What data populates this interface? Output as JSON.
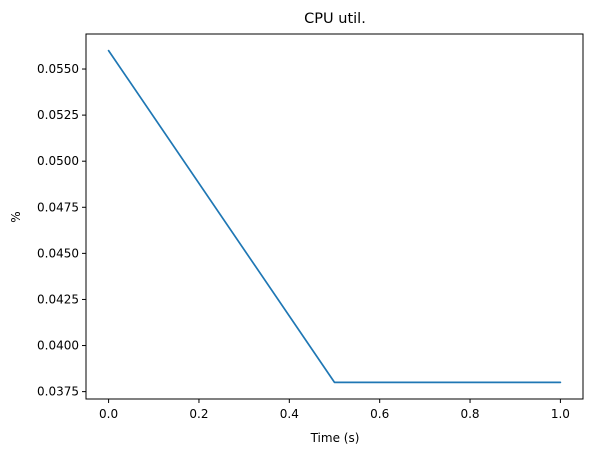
{
  "chart_data": {
    "type": "line",
    "title": "CPU util.",
    "xlabel": "Time (s)",
    "ylabel": "%",
    "xlim": [
      -0.05,
      1.05
    ],
    "ylim": [
      0.0371,
      0.0569
    ],
    "x_ticks": [
      0.0,
      0.2,
      0.4,
      0.6,
      0.8,
      1.0
    ],
    "x_tick_labels": [
      "0.0",
      "0.2",
      "0.4",
      "0.6",
      "0.8",
      "1.0"
    ],
    "y_ticks": [
      0.0375,
      0.04,
      0.0425,
      0.045,
      0.0475,
      0.05,
      0.0525,
      0.055
    ],
    "y_tick_labels": [
      "0.0375",
      "0.0400",
      "0.0425",
      "0.0450",
      "0.0475",
      "0.0500",
      "0.0525",
      "0.0550"
    ],
    "grid": false,
    "series": [
      {
        "color": "#1f77b4",
        "x": [
          0.0,
          0.5,
          1.0
        ],
        "y": [
          0.056,
          0.038,
          0.038
        ]
      }
    ]
  }
}
